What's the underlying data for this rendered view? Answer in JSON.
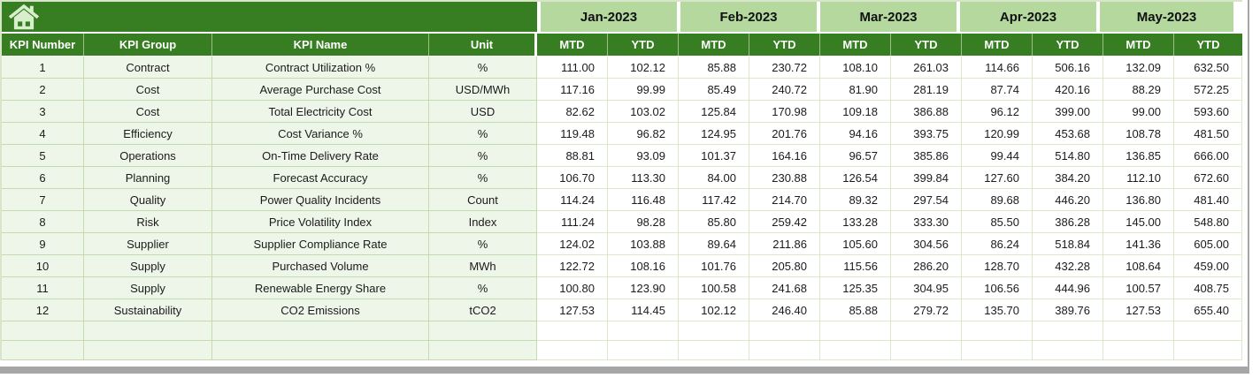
{
  "header": {
    "fixed_columns": [
      "KPI Number",
      "KPI Group",
      "KPI Name",
      "Unit"
    ],
    "months": [
      "Jan-2023",
      "Feb-2023",
      "Mar-2023",
      "Apr-2023",
      "May-2023"
    ],
    "period_columns": [
      "MTD",
      "YTD"
    ]
  },
  "table": {
    "rows": [
      {
        "number": "1",
        "group": "Contract",
        "name": "Contract Utilization %",
        "unit": "%",
        "values": [
          "111.00",
          "102.12",
          "85.88",
          "230.72",
          "108.10",
          "261.03",
          "114.66",
          "506.16",
          "132.09",
          "632.50"
        ]
      },
      {
        "number": "2",
        "group": "Cost",
        "name": "Average Purchase Cost",
        "unit": "USD/MWh",
        "values": [
          "117.16",
          "99.99",
          "85.49",
          "240.72",
          "81.90",
          "281.19",
          "87.74",
          "420.16",
          "88.29",
          "572.25"
        ]
      },
      {
        "number": "3",
        "group": "Cost",
        "name": "Total Electricity Cost",
        "unit": "USD",
        "values": [
          "82.62",
          "103.02",
          "125.84",
          "170.98",
          "109.18",
          "386.88",
          "96.12",
          "399.00",
          "99.00",
          "593.60"
        ]
      },
      {
        "number": "4",
        "group": "Efficiency",
        "name": "Cost Variance %",
        "unit": "%",
        "values": [
          "119.48",
          "96.82",
          "124.95",
          "201.76",
          "94.16",
          "393.75",
          "120.99",
          "453.68",
          "108.78",
          "481.50"
        ]
      },
      {
        "number": "5",
        "group": "Operations",
        "name": "On-Time Delivery Rate",
        "unit": "%",
        "values": [
          "88.81",
          "93.09",
          "101.37",
          "164.16",
          "96.57",
          "385.86",
          "99.44",
          "514.80",
          "136.85",
          "666.00"
        ]
      },
      {
        "number": "6",
        "group": "Planning",
        "name": "Forecast Accuracy",
        "unit": "%",
        "values": [
          "106.70",
          "113.30",
          "84.00",
          "230.88",
          "126.54",
          "399.84",
          "127.60",
          "384.20",
          "112.10",
          "672.60"
        ]
      },
      {
        "number": "7",
        "group": "Quality",
        "name": "Power Quality Incidents",
        "unit": "Count",
        "values": [
          "114.24",
          "116.48",
          "117.42",
          "214.70",
          "89.32",
          "297.54",
          "89.68",
          "446.20",
          "136.80",
          "481.40"
        ]
      },
      {
        "number": "8",
        "group": "Risk",
        "name": "Price Volatility Index",
        "unit": "Index",
        "values": [
          "111.24",
          "98.28",
          "85.80",
          "259.42",
          "133.28",
          "333.30",
          "85.50",
          "386.28",
          "145.00",
          "548.80"
        ]
      },
      {
        "number": "9",
        "group": "Supplier",
        "name": "Supplier Compliance Rate",
        "unit": "%",
        "values": [
          "124.02",
          "103.88",
          "89.64",
          "211.86",
          "105.60",
          "304.56",
          "86.24",
          "518.84",
          "141.36",
          "605.00"
        ]
      },
      {
        "number": "10",
        "group": "Supply",
        "name": "Purchased Volume",
        "unit": "MWh",
        "values": [
          "122.72",
          "108.16",
          "101.76",
          "205.80",
          "115.56",
          "286.20",
          "128.70",
          "432.28",
          "108.64",
          "459.00"
        ]
      },
      {
        "number": "11",
        "group": "Supply",
        "name": "Renewable Energy Share",
        "unit": "%",
        "values": [
          "100.80",
          "123.90",
          "100.58",
          "241.68",
          "125.35",
          "304.95",
          "106.56",
          "444.96",
          "100.57",
          "408.75"
        ]
      },
      {
        "number": "12",
        "group": "Sustainability",
        "name": "CO2 Emissions",
        "unit": "tCO2",
        "values": [
          "127.53",
          "114.45",
          "102.12",
          "246.40",
          "85.88",
          "279.72",
          "135.70",
          "389.76",
          "127.53",
          "655.40"
        ]
      }
    ],
    "empty_row_count": 2
  },
  "icons": {
    "home": "home-icon"
  },
  "colors": {
    "header_green": "#377d22",
    "month_green": "#b4d89e",
    "row_tint": "#eef5e9",
    "grid_line": "#c3dcae",
    "value_grid_line": "#d9e9ca",
    "icon_pale_green": "#d8efcc",
    "window_edge_gray": "#a6a6a6"
  }
}
